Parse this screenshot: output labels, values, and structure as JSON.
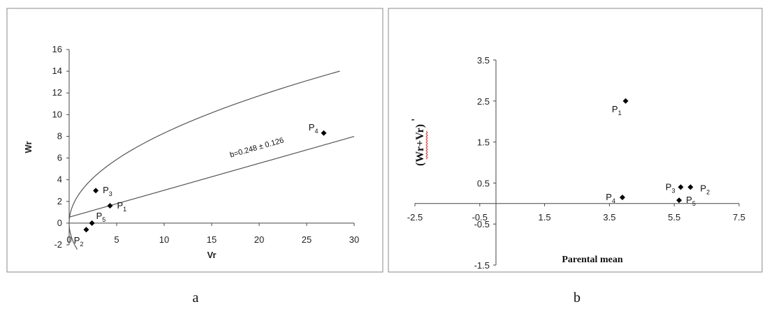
{
  "chart_data": [
    {
      "type": "scatter",
      "panel_label": "a",
      "xlabel": "Vr",
      "ylabel": "Wr",
      "xlim": [
        0,
        30
      ],
      "ylim": [
        -2,
        16
      ],
      "xticks": [
        "0",
        "5",
        "10",
        "15",
        "20",
        "25",
        "30"
      ],
      "yticks": [
        "-2",
        "0",
        "2",
        "4",
        "6",
        "8",
        "10",
        "12",
        "14",
        "16"
      ],
      "grid": false,
      "points": [
        {
          "name": "P",
          "sub": "1",
          "x": 4.3,
          "y": 1.6
        },
        {
          "name": "P",
          "sub": "2",
          "x": 1.8,
          "y": -0.6
        },
        {
          "name": "P",
          "sub": "3",
          "x": 2.8,
          "y": 3.0
        },
        {
          "name": "P",
          "sub": "4",
          "x": 26.8,
          "y": 8.3
        },
        {
          "name": "P",
          "sub": "5",
          "x": 2.4,
          "y": 0.0
        }
      ],
      "regression_line": {
        "intercept": 0.55,
        "slope": 0.248,
        "x_range": [
          0,
          30
        ]
      },
      "regression_annotation": "b=0.248 ± 0.126",
      "limiting_parabola": {
        "coefficient": 0.905,
        "x_max": 28.5
      }
    },
    {
      "type": "scatter",
      "panel_label": "b",
      "xlabel": "Parental mean",
      "ylabel": "(Wr+Vr)",
      "ylabel_prime": "'",
      "xlim": [
        -2.5,
        7.5
      ],
      "ylim": [
        -1.5,
        3.5
      ],
      "xticks": [
        "-2.5",
        "-0.5",
        "1.5",
        "3.5",
        "5.5",
        "7.5"
      ],
      "yticks": [
        "3.5",
        "2.5",
        "1.5",
        "0.5",
        "-0.5",
        "-1.5"
      ],
      "grid": false,
      "points": [
        {
          "name": "P",
          "sub": "1",
          "x": 4.0,
          "y": 2.5
        },
        {
          "name": "P",
          "sub": "2",
          "x": 6.0,
          "y": 0.4
        },
        {
          "name": "P",
          "sub": "3",
          "x": 5.7,
          "y": 0.4
        },
        {
          "name": "P",
          "sub": "4",
          "x": 3.9,
          "y": 0.15
        },
        {
          "name": "P",
          "sub": "5",
          "x": 5.65,
          "y": 0.08
        }
      ]
    }
  ],
  "colors": {
    "marker": "#000000",
    "line": "#555555",
    "frame": "#888888",
    "wavy": "#e03030"
  }
}
